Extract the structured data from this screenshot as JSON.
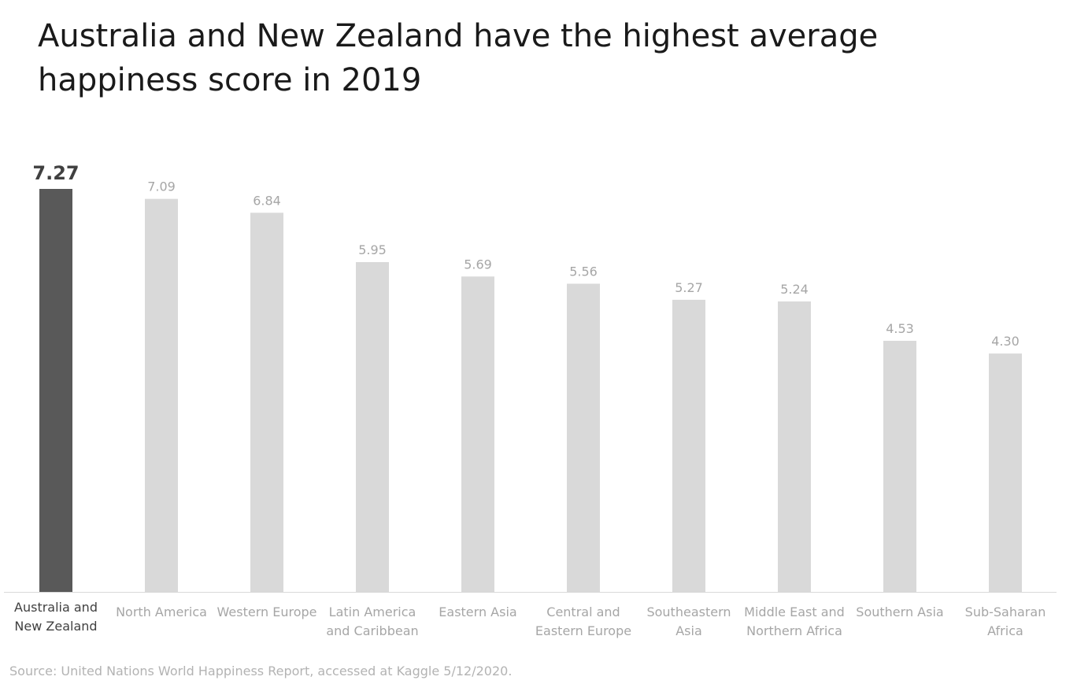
{
  "title": "Australia and New Zealand have the highest average happiness score in 2019",
  "source": "Source: United Nations World Happiness Report, accessed at Kaggle 5/12/2020.",
  "colors": {
    "highlight": "#595959",
    "muted": "#d9d9d9",
    "highlight_text": "#404040",
    "muted_text": "#a6a6a6",
    "axis": "#d9d9d9"
  },
  "chart_data": {
    "type": "bar",
    "categories": [
      [
        "Australia and",
        "New Zealand"
      ],
      [
        "North America"
      ],
      [
        "Western Europe"
      ],
      [
        "Latin America",
        "and Caribbean"
      ],
      [
        "Eastern Asia"
      ],
      [
        "Central and",
        "Eastern Europe"
      ],
      [
        "Southeastern",
        "Asia"
      ],
      [
        "Middle East and",
        "Northern Africa"
      ],
      [
        "Southern Asia"
      ],
      [
        "Sub-Saharan",
        "Africa"
      ]
    ],
    "values": [
      7.27,
      7.09,
      6.84,
      5.95,
      5.69,
      5.56,
      5.27,
      5.24,
      4.53,
      4.3
    ],
    "value_labels": [
      "7.27",
      "7.09",
      "6.84",
      "5.95",
      "5.69",
      "5.56",
      "5.27",
      "5.24",
      "4.53",
      "4.30"
    ],
    "highlight_index": 0,
    "xlabel": "",
    "ylabel": "",
    "ylim": [
      0,
      7.27
    ],
    "grid": false,
    "legend": "none"
  }
}
